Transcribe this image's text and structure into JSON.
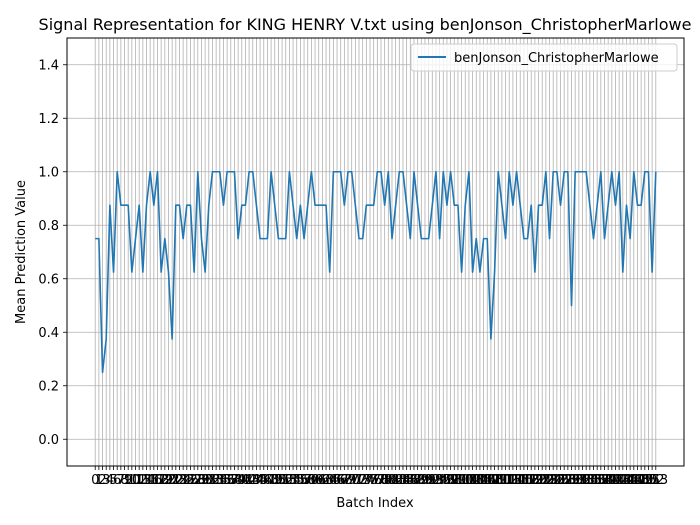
{
  "chart_data": {
    "type": "line",
    "title": "Signal Representation for KING HENRY V.txt using benJonson_ChristopherMarlowe",
    "xlabel": "Batch Index",
    "ylabel": "Mean Prediction Value",
    "ylim": [
      -0.1,
      1.5
    ],
    "yticks": [
      0.0,
      0.2,
      0.4,
      0.6,
      0.8,
      1.0,
      1.2,
      1.4
    ],
    "grid": true,
    "legend_position": "upper-right",
    "colors": {
      "series": "#1f77b4",
      "grid": "#b0b0b0"
    },
    "series": [
      {
        "name": "benJonson_ChristopherMarlowe",
        "x": [
          0,
          1,
          2,
          3,
          4,
          5,
          6,
          7,
          8,
          9,
          10,
          11,
          12,
          13,
          14,
          15,
          16,
          17,
          18,
          19,
          20,
          21,
          22,
          23,
          24,
          25,
          26,
          27,
          28,
          29,
          30,
          31,
          32,
          33,
          34,
          35,
          36,
          37,
          38,
          39,
          40,
          41,
          42,
          43,
          44,
          45,
          46,
          47,
          48,
          49,
          50,
          51,
          52,
          53,
          54,
          55,
          56,
          57,
          58,
          59,
          60,
          61,
          62,
          63,
          64,
          65,
          66,
          67,
          68,
          69,
          70,
          71,
          72,
          73,
          74,
          75,
          76,
          77,
          78,
          79,
          80,
          81,
          82,
          83,
          84,
          85,
          86,
          87,
          88,
          89,
          90,
          91,
          92,
          93,
          94,
          95,
          96,
          97,
          98,
          99,
          100,
          101,
          102,
          103,
          104,
          105,
          106,
          107,
          108,
          109,
          110,
          111,
          112,
          113,
          114,
          115,
          116,
          117,
          118,
          119,
          120,
          121,
          122,
          123,
          124,
          125,
          126,
          127,
          128,
          129,
          130,
          131,
          132,
          133,
          134,
          135,
          136,
          137,
          138,
          139,
          140,
          141,
          142,
          143,
          144,
          145,
          146,
          147,
          148,
          149,
          150,
          151,
          152,
          153
        ],
        "values": [
          0.75,
          0.75,
          0.25,
          0.375,
          0.875,
          0.625,
          1.0,
          0.875,
          0.875,
          0.875,
          0.625,
          0.75,
          0.875,
          0.625,
          0.875,
          1.0,
          0.875,
          1.0,
          0.625,
          0.75,
          0.625,
          0.375,
          0.875,
          0.875,
          0.75,
          0.875,
          0.875,
          0.625,
          1.0,
          0.75,
          0.625,
          0.875,
          1.0,
          1.0,
          1.0,
          0.875,
          1.0,
          1.0,
          1.0,
          0.75,
          0.875,
          0.875,
          1.0,
          1.0,
          0.875,
          0.75,
          0.75,
          0.75,
          1.0,
          0.875,
          0.75,
          0.75,
          0.75,
          1.0,
          0.875,
          0.75,
          0.875,
          0.75,
          0.875,
          1.0,
          0.875,
          0.875,
          0.875,
          0.875,
          0.625,
          1.0,
          1.0,
          1.0,
          0.875,
          1.0,
          1.0,
          0.875,
          0.75,
          0.75,
          0.875,
          0.875,
          0.875,
          1.0,
          1.0,
          0.875,
          1.0,
          0.75,
          0.875,
          1.0,
          1.0,
          0.875,
          0.75,
          1.0,
          0.875,
          0.75,
          0.75,
          0.75,
          0.875,
          1.0,
          0.75,
          1.0,
          0.875,
          1.0,
          0.875,
          0.875,
          0.625,
          0.875,
          1.0,
          0.625,
          0.75,
          0.625,
          0.75,
          0.75,
          0.375,
          0.625,
          1.0,
          0.875,
          0.75,
          1.0,
          0.875,
          1.0,
          0.875,
          0.75,
          0.75,
          0.875,
          0.625,
          0.875,
          0.875,
          1.0,
          0.75,
          1.0,
          1.0,
          0.875,
          1.0,
          1.0,
          0.5,
          1.0,
          1.0,
          1.0,
          1.0,
          0.875,
          0.75,
          0.875,
          1.0,
          0.75,
          0.875,
          1.0,
          0.875,
          1.0,
          0.625,
          0.875,
          0.75,
          1.0,
          0.875,
          0.875,
          1.0,
          1.0,
          0.625,
          1.0
        ]
      }
    ]
  }
}
